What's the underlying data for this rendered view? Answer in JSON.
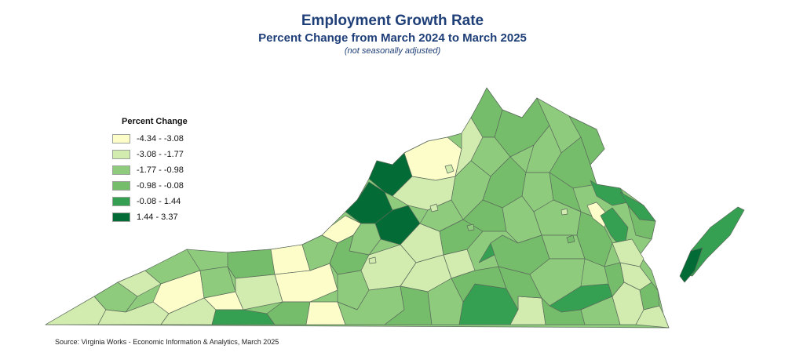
{
  "title": "Employment Growth Rate",
  "subtitle": "Percent Change from March 2024 to March 2025",
  "note": "(not seasonally adjusted)",
  "legend": {
    "title": "Percent Change",
    "bins": [
      {
        "label": "-4.34 - -3.08",
        "color": "#fcfdc9"
      },
      {
        "label": "-3.08 - -1.77",
        "color": "#d2ebae"
      },
      {
        "label": "-1.77 - -0.98",
        "color": "#8ecb7d"
      },
      {
        "label": "-0.98 - -0.08",
        "color": "#75bd6a"
      },
      {
        "label": "-0.08 - 1.44",
        "color": "#35a052"
      },
      {
        "label": "1.44 - 3.37",
        "color": "#036b35"
      }
    ]
  },
  "source": "Source: Virginia Works - Economic Information & Analytics, March 2025"
}
